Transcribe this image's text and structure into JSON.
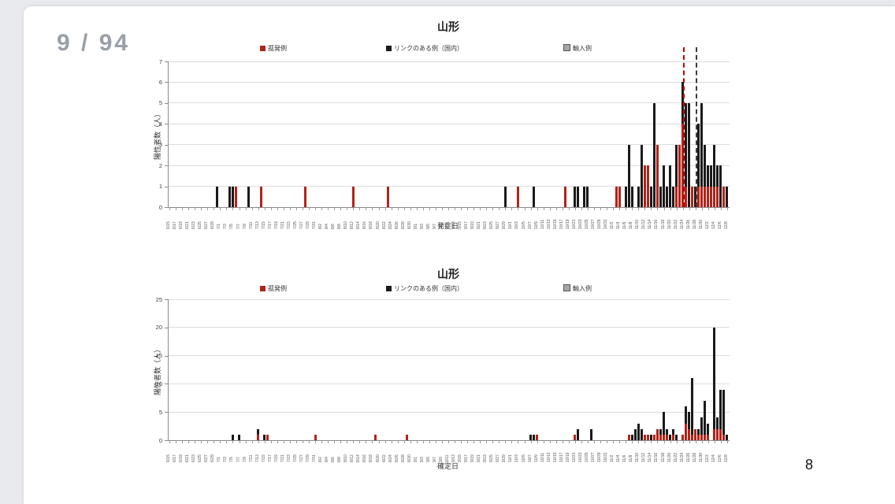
{
  "page": {
    "counter": "9 / 94",
    "page_number": "8"
  },
  "colors": {
    "sporadic_red": "#b22318",
    "linked_black": "#1a1a1a",
    "imported_gray": "#a6a6a6",
    "grid": "#dcdcdc",
    "axis": "#8a8a8a",
    "dashed_red_line": "#c00000",
    "dashed_black_line": "#3a3a3a"
  },
  "chart_data": [
    {
      "type": "bar",
      "stacked": true,
      "title": "山形",
      "xlabel": "発症日",
      "ylabel": "陽性者数（人）",
      "ylim": [
        0,
        7
      ],
      "ystep": 1,
      "grid": true,
      "legend_position": "top",
      "legend": [
        "孤発例",
        "リンクのある例（国内）",
        "輸入例"
      ],
      "series_keys": {
        "r": "孤発例",
        "b": "リンクのある例（国内）",
        "i": "輸入例"
      },
      "x_start": "6/15",
      "x_end": "12/8",
      "x_tick_rule": "date labels every 2 days from 6/15 to 12/8, rotated vertical",
      "vlines": [
        {
          "date": "11/24",
          "style": "dashed",
          "color": "red"
        },
        {
          "date": "11/28",
          "style": "dashed",
          "color": "black"
        }
      ],
      "bars": [
        {
          "d": "6/30",
          "r": 0,
          "b": 1
        },
        {
          "d": "7/4",
          "r": 0,
          "b": 1
        },
        {
          "d": "7/5",
          "r": 0,
          "b": 1
        },
        {
          "d": "7/6",
          "r": 1,
          "b": 0
        },
        {
          "d": "7/10",
          "r": 0,
          "b": 1
        },
        {
          "d": "7/14",
          "r": 1,
          "b": 0
        },
        {
          "d": "7/28",
          "r": 1,
          "b": 0
        },
        {
          "d": "8/12",
          "r": 1,
          "b": 0
        },
        {
          "d": "8/23",
          "r": 1,
          "b": 0
        },
        {
          "d": "9/29",
          "r": 0,
          "b": 1
        },
        {
          "d": "10/3",
          "r": 1,
          "b": 0
        },
        {
          "d": "10/8",
          "r": 0,
          "b": 1
        },
        {
          "d": "10/18",
          "r": 1,
          "b": 0
        },
        {
          "d": "10/21",
          "r": 0,
          "b": 1
        },
        {
          "d": "10/22",
          "r": 0,
          "b": 1
        },
        {
          "d": "10/24",
          "r": 0,
          "b": 1
        },
        {
          "d": "10/25",
          "r": 0,
          "b": 1
        },
        {
          "d": "11/3",
          "r": 1,
          "b": 0
        },
        {
          "d": "11/4",
          "r": 1,
          "b": 0
        },
        {
          "d": "11/6",
          "r": 0,
          "b": 1
        },
        {
          "d": "11/7",
          "r": 0,
          "b": 3
        },
        {
          "d": "11/8",
          "r": 0,
          "b": 1
        },
        {
          "d": "11/10",
          "r": 0,
          "b": 1
        },
        {
          "d": "11/11",
          "r": 0,
          "b": 3
        },
        {
          "d": "11/12",
          "r": 2,
          "b": 0
        },
        {
          "d": "11/13",
          "r": 2,
          "b": 0
        },
        {
          "d": "11/14",
          "r": 0,
          "b": 1
        },
        {
          "d": "11/15",
          "r": 0,
          "b": 5
        },
        {
          "d": "11/16",
          "r": 3,
          "b": 0
        },
        {
          "d": "11/17",
          "r": 0,
          "b": 1
        },
        {
          "d": "11/18",
          "r": 0,
          "b": 2
        },
        {
          "d": "11/19",
          "r": 0,
          "b": 1
        },
        {
          "d": "11/20",
          "r": 0,
          "b": 2
        },
        {
          "d": "11/21",
          "r": 0,
          "b": 1
        },
        {
          "d": "11/22",
          "r": 1,
          "b": 2
        },
        {
          "d": "11/23",
          "r": 3,
          "b": 0
        },
        {
          "d": "11/24",
          "r": 4,
          "b": 2
        },
        {
          "d": "11/25",
          "r": 1,
          "b": 4
        },
        {
          "d": "11/26",
          "r": 0,
          "b": 5
        },
        {
          "d": "11/27",
          "r": 1,
          "b": 0
        },
        {
          "d": "11/28",
          "r": 0,
          "b": 1
        },
        {
          "d": "11/29",
          "r": 1,
          "b": 3
        },
        {
          "d": "11/30",
          "r": 1,
          "b": 4
        },
        {
          "d": "12/1",
          "r": 1,
          "b": 2
        },
        {
          "d": "12/2",
          "r": 1,
          "b": 1
        },
        {
          "d": "12/3",
          "r": 1,
          "b": 1
        },
        {
          "d": "12/4",
          "r": 1,
          "b": 2
        },
        {
          "d": "12/5",
          "r": 1,
          "b": 1
        },
        {
          "d": "12/6",
          "r": 0,
          "b": 2
        },
        {
          "d": "12/7",
          "r": 1,
          "b": 0
        },
        {
          "d": "12/8",
          "r": 0,
          "b": 1
        }
      ]
    },
    {
      "type": "bar",
      "stacked": true,
      "title": "山形",
      "xlabel": "確定日",
      "ylabel": "陽性者数（人）",
      "ylim": [
        0,
        25
      ],
      "ystep": 5,
      "grid": true,
      "legend_position": "top",
      "legend": [
        "孤発例",
        "リンクのある例（国内）",
        "輸入例"
      ],
      "series_keys": {
        "r": "孤発例",
        "b": "リンクのある例（国内）",
        "i": "輸入例"
      },
      "x_start": "6/15",
      "x_end": "12/8",
      "x_tick_rule": "date labels every 2 days from 6/15 to 12/8, rotated vertical",
      "vlines": [],
      "bars": [
        {
          "d": "7/5",
          "r": 0,
          "b": 1
        },
        {
          "d": "7/7",
          "r": 0,
          "b": 1
        },
        {
          "d": "7/13",
          "r": 1,
          "b": 1
        },
        {
          "d": "7/15",
          "r": 0,
          "b": 1
        },
        {
          "d": "7/16",
          "r": 1,
          "b": 0
        },
        {
          "d": "7/31",
          "r": 1,
          "b": 0
        },
        {
          "d": "8/19",
          "r": 1,
          "b": 0
        },
        {
          "d": "8/29",
          "r": 1,
          "b": 0
        },
        {
          "d": "10/7",
          "r": 0,
          "b": 1
        },
        {
          "d": "10/8",
          "r": 0,
          "b": 1
        },
        {
          "d": "10/9",
          "r": 1,
          "b": 0
        },
        {
          "d": "10/21",
          "r": 1,
          "b": 0
        },
        {
          "d": "10/22",
          "r": 0,
          "b": 2
        },
        {
          "d": "10/26",
          "r": 0,
          "b": 2
        },
        {
          "d": "11/7",
          "r": 1,
          "b": 0
        },
        {
          "d": "11/8",
          "r": 0,
          "b": 1
        },
        {
          "d": "11/9",
          "r": 0,
          "b": 2
        },
        {
          "d": "11/10",
          "r": 0,
          "b": 3
        },
        {
          "d": "11/11",
          "r": 0,
          "b": 2
        },
        {
          "d": "11/12",
          "r": 1,
          "b": 0
        },
        {
          "d": "11/13",
          "r": 1,
          "b": 0
        },
        {
          "d": "11/14",
          "r": 0,
          "b": 1
        },
        {
          "d": "11/15",
          "r": 1,
          "b": 0
        },
        {
          "d": "11/16",
          "r": 2,
          "b": 0
        },
        {
          "d": "11/17",
          "r": 1,
          "b": 1
        },
        {
          "d": "11/18",
          "r": 1,
          "b": 4
        },
        {
          "d": "11/19",
          "r": 1,
          "b": 1
        },
        {
          "d": "11/20",
          "r": 0,
          "b": 1
        },
        {
          "d": "11/21",
          "r": 1,
          "b": 1
        },
        {
          "d": "11/22",
          "r": 0,
          "b": 1
        },
        {
          "d": "11/24",
          "r": 1,
          "b": 0
        },
        {
          "d": "11/25",
          "r": 3,
          "b": 3
        },
        {
          "d": "11/26",
          "r": 2,
          "b": 3
        },
        {
          "d": "11/27",
          "r": 1,
          "b": 10
        },
        {
          "d": "11/28",
          "r": 2,
          "b": 0
        },
        {
          "d": "11/29",
          "r": 1,
          "b": 1
        },
        {
          "d": "11/30",
          "r": 1,
          "b": 3
        },
        {
          "d": "12/1",
          "r": 1,
          "b": 6
        },
        {
          "d": "12/2",
          "r": 1,
          "b": 2
        },
        {
          "d": "12/4",
          "r": 2,
          "b": 18
        },
        {
          "d": "12/5",
          "r": 2,
          "b": 2
        },
        {
          "d": "12/6",
          "r": 2,
          "b": 7
        },
        {
          "d": "12/7",
          "r": 1,
          "b": 8
        },
        {
          "d": "12/8",
          "r": 0,
          "b": 1
        }
      ]
    }
  ]
}
